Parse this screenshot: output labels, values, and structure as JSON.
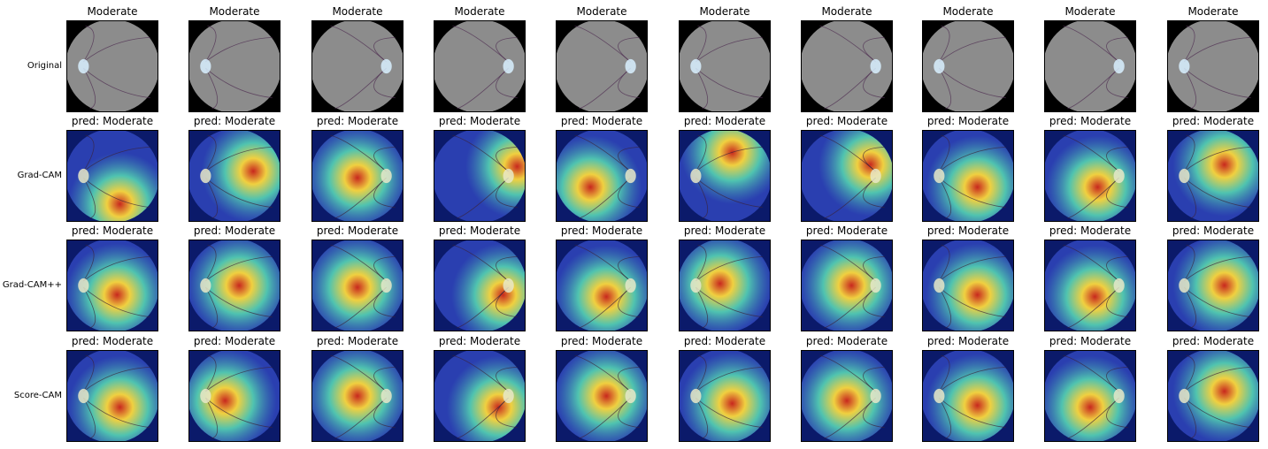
{
  "rows": [
    {
      "label": "Original",
      "kind": "original"
    },
    {
      "label": "Grad-CAM",
      "kind": "gradcam"
    },
    {
      "label": "Grad-CAM++",
      "kind": "gradcampp"
    },
    {
      "label": "Score-CAM",
      "kind": "scorecam"
    }
  ],
  "columns": [
    {
      "title": "Moderate",
      "pred": "pred: Moderate",
      "disc_side": "left"
    },
    {
      "title": "Moderate",
      "pred": "pred: Moderate",
      "disc_side": "left"
    },
    {
      "title": "Moderate",
      "pred": "pred: Moderate",
      "disc_side": "right"
    },
    {
      "title": "Moderate",
      "pred": "pred: Moderate",
      "disc_side": "right"
    },
    {
      "title": "Moderate",
      "pred": "pred: Moderate",
      "disc_side": "right"
    },
    {
      "title": "Moderate",
      "pred": "pred: Moderate",
      "disc_side": "left"
    },
    {
      "title": "Moderate",
      "pred": "pred: Moderate",
      "disc_side": "right"
    },
    {
      "title": "Moderate",
      "pred": "pred: Moderate",
      "disc_side": "left"
    },
    {
      "title": "Moderate",
      "pred": "pred: Moderate",
      "disc_side": "right"
    },
    {
      "title": "Moderate",
      "pred": "pred: Moderate",
      "disc_side": "left"
    }
  ],
  "colors": {
    "fundus_gray": "#8c8c8c",
    "heat_low": "#2a3fb0",
    "heat_mid": "#4fc3b0",
    "heat_high": "#f0d040",
    "heat_peak": "#c8281e"
  }
}
